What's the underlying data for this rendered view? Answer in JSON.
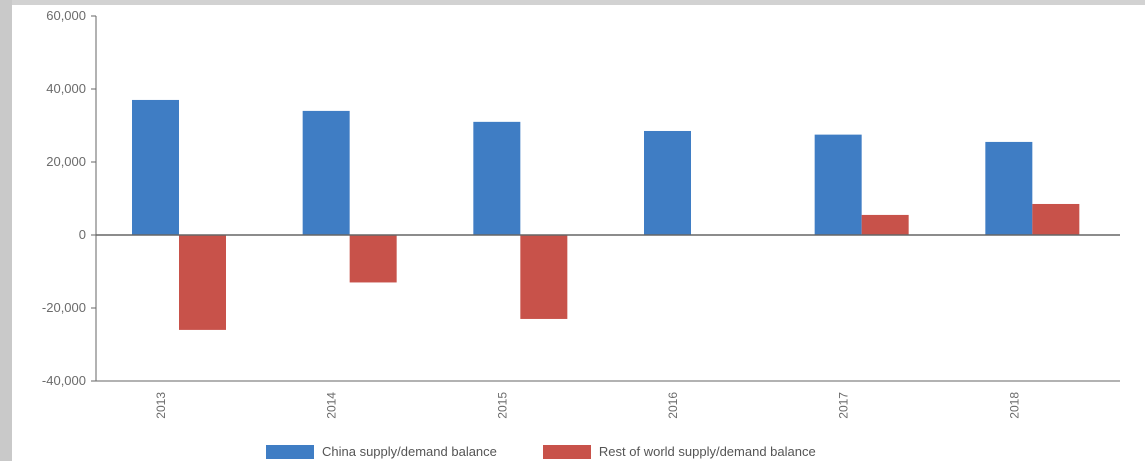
{
  "chart_data": {
    "type": "bar",
    "categories": [
      "2013",
      "2014",
      "2015",
      "2016",
      "2017",
      "2018"
    ],
    "series": [
      {
        "name": "China supply/demand balance",
        "color": "#3f7dc4",
        "values": [
          37000,
          34000,
          31000,
          28500,
          27500,
          25500
        ]
      },
      {
        "name": "Rest of world supply/demand balance",
        "color": "#c8524a",
        "values": [
          -26000,
          -13000,
          -23000,
          0,
          5500,
          8500
        ]
      }
    ],
    "yticks": [
      "60,000",
      "40,000",
      "20,000",
      "0",
      "-20,000",
      "-40,000"
    ],
    "ylim": [
      -40000,
      60000
    ],
    "grid": false,
    "legend_position": "bottom"
  }
}
